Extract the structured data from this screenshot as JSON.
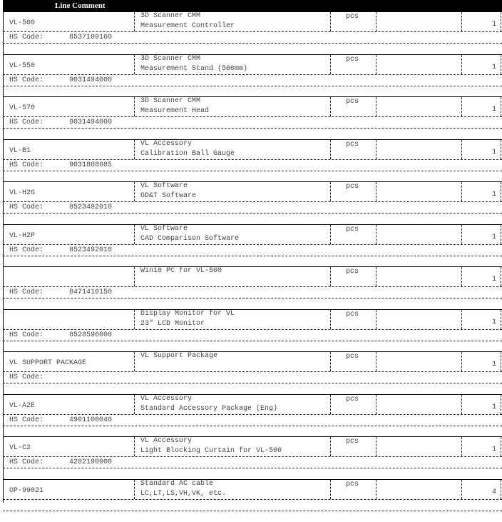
{
  "header": {
    "title": "Line Comment"
  },
  "items": [
    {
      "code": "VL-500",
      "desc1": "3D Scanner CMM",
      "desc2": "Measurement Controller",
      "unit": "pcs",
      "qty": "1",
      "hs_label": "HS Code:",
      "hs_code": "8537109160"
    },
    {
      "code": "VL-550",
      "desc1": "3D Scanner CMM",
      "desc2": "Measurement Stand (500mm)",
      "unit": "pcs",
      "qty": "1",
      "hs_label": "HS Code:",
      "hs_code": "9031494000"
    },
    {
      "code": "VL-570",
      "desc1": "3D Scanner CMM",
      "desc2": "Measurement Head",
      "unit": "pcs",
      "qty": "1",
      "hs_label": "HS Code:",
      "hs_code": "9031494000"
    },
    {
      "code": "VL-B1",
      "desc1": "VL Accessory",
      "desc2": "Calibration Ball Gauge",
      "unit": "pcs",
      "qty": "1",
      "hs_label": "HS Code:",
      "hs_code": "9031808085"
    },
    {
      "code": "VL-H2G",
      "desc1": "VL Software",
      "desc2": "GD&T Software",
      "unit": "pcs",
      "qty": "1",
      "hs_label": "HS Code:",
      "hs_code": "8523492010"
    },
    {
      "code": "VL-H2P",
      "desc1": "VL Software",
      "desc2": "CAD Comparison Software",
      "unit": "pcs",
      "qty": "1",
      "hs_label": "HS Code:",
      "hs_code": "8523492010"
    },
    {
      "code": "",
      "desc1": "Win10 PC for VL-500",
      "desc2": "",
      "unit": "pcs",
      "qty": "1",
      "hs_label": "HS Code:",
      "hs_code": "8471410150"
    },
    {
      "code": "",
      "desc1": "Display Monitor for VL",
      "desc2": "23\" LCD Monitor",
      "unit": "pcs",
      "qty": "1",
      "hs_label": "HS Code:",
      "hs_code": "8528596000"
    },
    {
      "code": "VL SUPPORT PACKAGE",
      "desc1": "VL Support Package",
      "desc2": "",
      "unit": "pcs",
      "qty": "1",
      "hs_label": "HS Code:",
      "hs_code": ""
    },
    {
      "code": "VL-A2E",
      "desc1": "VL Accessory",
      "desc2": "Standard Accessory Package (Eng)",
      "unit": "pcs",
      "qty": "1",
      "hs_label": "HS Code:",
      "hs_code": "4901100040"
    },
    {
      "code": "VL-C2",
      "desc1": "VL Accessory",
      "desc2": "Light Blocking Curtain for VL-500",
      "unit": "pcs",
      "qty": "1",
      "hs_label": "HS Code:",
      "hs_code": "4202190000"
    },
    {
      "code": "OP-99021",
      "desc1": "Standard AC cable",
      "desc2": "LC,LT,LS,VH,VK, etc.",
      "unit": "pcs",
      "qty": "4",
      "hs_label": "",
      "hs_code": ""
    }
  ]
}
